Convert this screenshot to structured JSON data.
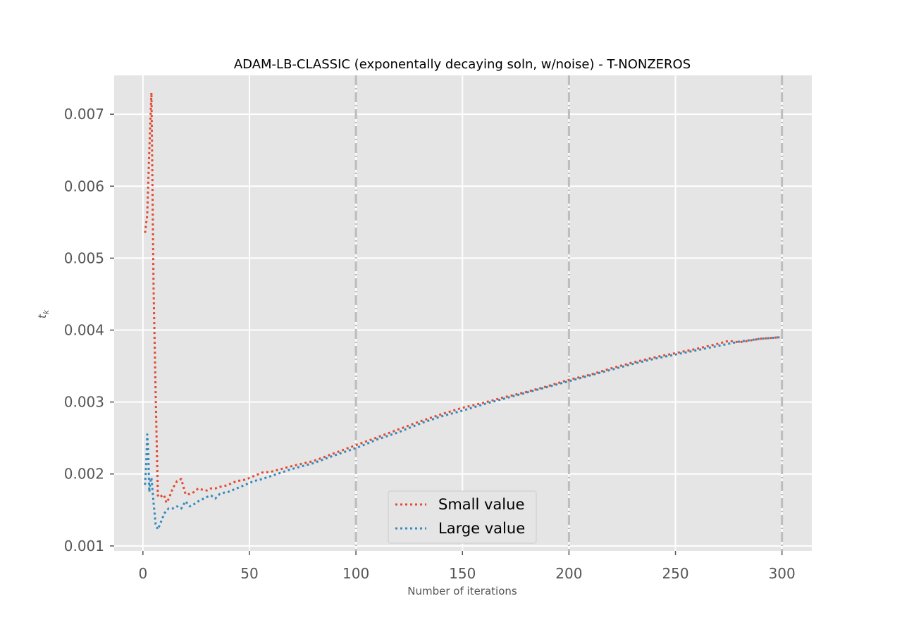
{
  "chart_data": {
    "type": "line",
    "title": "ADAM-LB-CLASSIC (exponentally decaying soln, w/noise) - T-NONZEROS",
    "xlabel": "Number of iterations",
    "ylabel": "t",
    "ylabel_subscript": "k",
    "xlim": [
      -13.5,
      314
    ],
    "ylim": [
      0.00093,
      0.00754
    ],
    "xticks": [
      0,
      50,
      100,
      150,
      200,
      250,
      300
    ],
    "yticks": [
      0.001,
      0.002,
      0.003,
      0.004,
      0.005,
      0.006,
      0.007
    ],
    "xtick_labels": [
      "0",
      "50",
      "100",
      "150",
      "200",
      "250",
      "300"
    ],
    "ytick_labels": [
      "0.001",
      "0.002",
      "0.003",
      "0.004",
      "0.005",
      "0.006",
      "0.007"
    ],
    "vlines": [
      100,
      200,
      300
    ],
    "grid": true,
    "legend_position": "lower-center",
    "series": [
      {
        "name": "Small value",
        "color": "#e24a33",
        "style": "dotted",
        "x": [
          1,
          2,
          3,
          4,
          5,
          6,
          7,
          8,
          9,
          10,
          11,
          12,
          13,
          14,
          16,
          18,
          20,
          22,
          24,
          26,
          28,
          30,
          32,
          34,
          36,
          38,
          40,
          44,
          48,
          52,
          56,
          60,
          70,
          80,
          90,
          100,
          110,
          120,
          130,
          140,
          150,
          160,
          170,
          180,
          190,
          200,
          210,
          220,
          230,
          240,
          250,
          260,
          270,
          275,
          280,
          290,
          299
        ],
        "y": [
          0.00535,
          0.0056,
          0.0065,
          0.0073,
          0.0046,
          0.0031,
          0.0017,
          0.00172,
          0.00168,
          0.0017,
          0.0016,
          0.00165,
          0.00172,
          0.0018,
          0.0019,
          0.00193,
          0.00172,
          0.00172,
          0.00175,
          0.0018,
          0.00178,
          0.00177,
          0.0018,
          0.0018,
          0.00182,
          0.00183,
          0.00185,
          0.0019,
          0.00192,
          0.00197,
          0.00202,
          0.00203,
          0.00211,
          0.00218,
          0.00229,
          0.0024,
          0.00251,
          0.00262,
          0.00273,
          0.00283,
          0.00292,
          0.00299,
          0.00307,
          0.00314,
          0.00322,
          0.00331,
          0.00338,
          0.00347,
          0.00355,
          0.00362,
          0.00368,
          0.00374,
          0.00381,
          0.00385,
          0.00383,
          0.00388,
          0.0039
        ]
      },
      {
        "name": "Large value",
        "color": "#348abd",
        "style": "dotted",
        "x": [
          1,
          1.5,
          2,
          2.5,
          3,
          3.5,
          4,
          5,
          6,
          7,
          8,
          9,
          10,
          12,
          14,
          16,
          18,
          20,
          22,
          24,
          26,
          28,
          30,
          32,
          34,
          36,
          38,
          40,
          44,
          48,
          52,
          56,
          60,
          70,
          80,
          90,
          100,
          110,
          120,
          130,
          140,
          150,
          160,
          170,
          180,
          190,
          200,
          210,
          220,
          230,
          240,
          250,
          260,
          270,
          280,
          290,
          299
        ],
        "y": [
          0.00185,
          0.0021,
          0.00255,
          0.0023,
          0.00175,
          0.0019,
          0.00195,
          0.0016,
          0.0013,
          0.00123,
          0.0013,
          0.00137,
          0.00145,
          0.00152,
          0.00152,
          0.00155,
          0.00152,
          0.00162,
          0.00155,
          0.00158,
          0.00162,
          0.00165,
          0.00168,
          0.0017,
          0.00166,
          0.00172,
          0.00174,
          0.00175,
          0.0018,
          0.00185,
          0.0019,
          0.00193,
          0.00197,
          0.00207,
          0.00215,
          0.00226,
          0.00236,
          0.00248,
          0.00258,
          0.0027,
          0.0028,
          0.00288,
          0.00297,
          0.00305,
          0.00313,
          0.00321,
          0.00329,
          0.00337,
          0.00345,
          0.00353,
          0.0036,
          0.00366,
          0.00372,
          0.00378,
          0.00384,
          0.00388,
          0.0039
        ]
      }
    ]
  }
}
